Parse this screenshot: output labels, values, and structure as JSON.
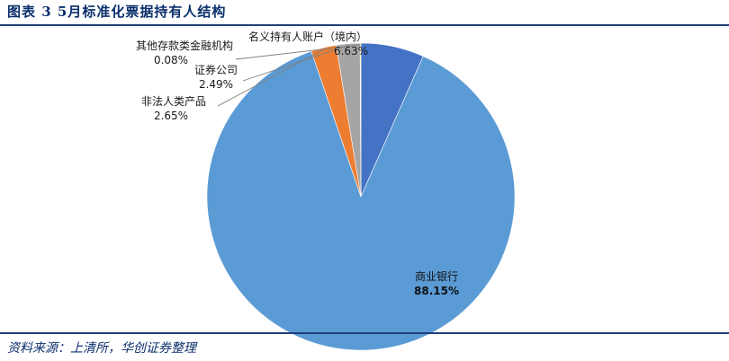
{
  "header": {
    "figure_title": "图表 3   5月标准化票据持有人结构"
  },
  "footer": {
    "source": "资料来源：上清所，华创证券整理"
  },
  "chart_data": {
    "type": "pie",
    "title": "5月标准化票据持有人结构",
    "unit": "%",
    "start": "12 o'clock, clockwise",
    "slices": [
      {
        "name": "名义持有人账户（境内）",
        "value": 6.63,
        "value_label": "6.63%",
        "color": "#4472c4"
      },
      {
        "name": "商业银行",
        "value": 88.15,
        "value_label": "88.15%",
        "color": "#5b9bd5"
      },
      {
        "name": "非法人类产品",
        "value": 2.65,
        "value_label": "2.65%",
        "color": "#ed7d31"
      },
      {
        "name": "证券公司",
        "value": 2.49,
        "value_label": "2.49%",
        "color": "#a5a5a5"
      },
      {
        "name": "其他存款类金融机构",
        "value": 0.08,
        "value_label": "0.08%",
        "color": "#ffc000"
      }
    ]
  }
}
